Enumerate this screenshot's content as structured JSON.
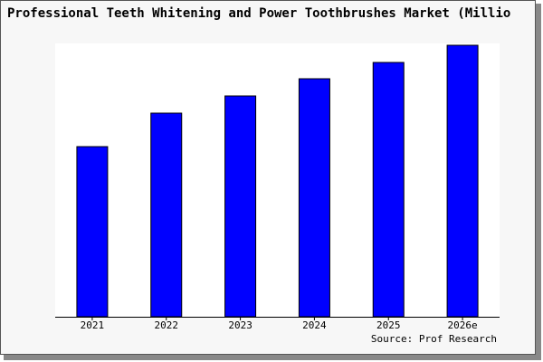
{
  "chart_data": {
    "type": "bar",
    "title": "Professional Teeth Whitening and Power Toothbrushes Market (Millio",
    "categories": [
      "2021",
      "2022",
      "2023",
      "2024",
      "2025",
      "2026e"
    ],
    "values": [
      188,
      225,
      244,
      263,
      281,
      300
    ],
    "color": "#0000ff",
    "ylim": [
      0,
      302
    ],
    "source": "Source: Prof Research"
  }
}
